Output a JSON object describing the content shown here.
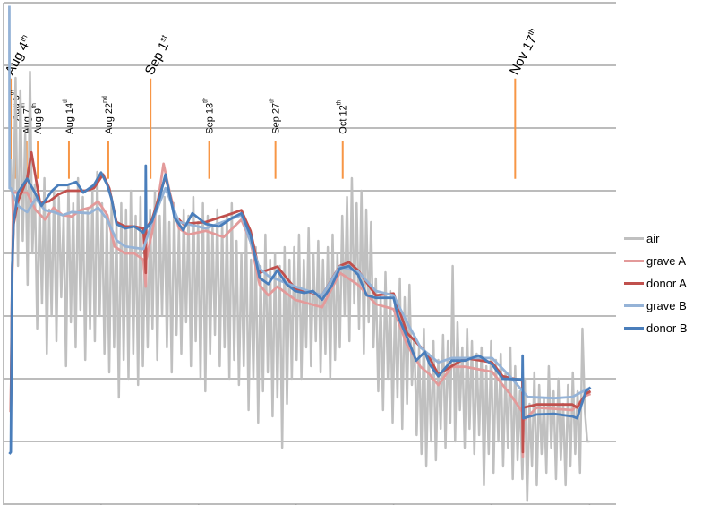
{
  "chart_data": {
    "type": "line",
    "title": "",
    "xlabel": "",
    "ylabel": "",
    "x_unit": "days since Aug 4th",
    "xlim": [
      -1.5,
      126
    ],
    "ylim": [
      0,
      8
    ],
    "y_gridlines": [
      1,
      2,
      3,
      4,
      5,
      6,
      7,
      8
    ],
    "x_ticks": [
      -1.5,
      18.8,
      39.1,
      59.4,
      79.7,
      100,
      120.5
    ],
    "grid": true,
    "legend_position": "right",
    "colors": {
      "air": "#c0c0c0",
      "grave_a": "#e39a9a",
      "donor_a": "#c0504d",
      "grave_b": "#95b3d7",
      "donor_b": "#4a7ebb",
      "annotation": "#f79646",
      "grid": "#a6a6a6"
    },
    "annotations": [
      {
        "date": "Aug 4",
        "sup": "th",
        "day": 0,
        "style": "major",
        "range": [
          5.19,
          6.79
        ]
      },
      {
        "date": "Aug 5",
        "sup": "th",
        "day": 1,
        "style": "minor",
        "range": [
          5.19,
          6.0
        ]
      },
      {
        "date": "Aug 7",
        "sup": "th",
        "day": 3.3,
        "style": "minor",
        "range": [
          5.19,
          5.79
        ]
      },
      {
        "date": "Aug 9",
        "sup": "th",
        "day": 5.6,
        "style": "minor",
        "range": [
          5.19,
          5.79
        ]
      },
      {
        "date": "Aug 14",
        "sup": "th",
        "day": 12.1,
        "style": "minor",
        "range": [
          5.19,
          5.79
        ]
      },
      {
        "date": "Aug 22",
        "sup": "nd",
        "day": 20.3,
        "style": "minor",
        "range": [
          5.19,
          5.79
        ]
      },
      {
        "date": "Sep 1",
        "sup": "st",
        "day": 29.1,
        "style": "major",
        "range": [
          5.19,
          6.79
        ]
      },
      {
        "date": "Sep 13",
        "sup": "th",
        "day": 41.3,
        "style": "minor",
        "range": [
          5.19,
          5.79
        ]
      },
      {
        "date": "Sep 27",
        "sup": "th",
        "day": 55.1,
        "style": "minor",
        "range": [
          5.19,
          5.79
        ]
      },
      {
        "date": "Oct 12",
        "sup": "th",
        "day": 69.1,
        "style": "minor",
        "range": [
          5.19,
          5.79
        ]
      },
      {
        "date": "Nov 17",
        "sup": "th",
        "day": 105,
        "style": "major",
        "range": [
          5.19,
          6.79
        ]
      }
    ],
    "air": {
      "name": "air",
      "daily_high": [
        5.5,
        6.8,
        6.6,
        5.9,
        6.9,
        5.1,
        4.8,
        5.2,
        4.7,
        5.0,
        4.9,
        4.6,
        5.1,
        4.8,
        5.2,
        4.9,
        4.7,
        5.0,
        5.3,
        4.8,
        4.6,
        4.9,
        4.5,
        4.8,
        4.7,
        5.0,
        4.6,
        4.9,
        4.4,
        4.7,
        5.0,
        4.6,
        4.9,
        4.5,
        4.8,
        4.4,
        4.7,
        4.6,
        4.9,
        4.5,
        4.8,
        4.6,
        4.4,
        4.7,
        4.5,
        4.6,
        4.8,
        4.2,
        4.0,
        4.4,
        3.9,
        4.1,
        3.8,
        4.3,
        3.9,
        4.0,
        3.8,
        4.1,
        3.9,
        4.1,
        4.3,
        3.9,
        4.4,
        4.0,
        4.2,
        3.9,
        4.1,
        4.3,
        4.0,
        4.6,
        4.9,
        5.2,
        4.8,
        5.0,
        4.7,
        4.5,
        3.6,
        3.3,
        3.7,
        3.4,
        3.2,
        3.6,
        3.3,
        3.5,
        2.7,
        2.5,
        2.8,
        2.4,
        2.6,
        2.3,
        2.7,
        2.6,
        3.8,
        2.9,
        2.5,
        2.8,
        2.6,
        2.4,
        2.5,
        2.2,
        2.6,
        2.3,
        2.4,
        2.1,
        2.5,
        2.2,
        1.8,
        2.0,
        1.6,
        2.1,
        1.9,
        1.7,
        2.2,
        1.8,
        2.0,
        1.6,
        1.9,
        2.1,
        1.8,
        2.8,
        1.0
      ],
      "daily_low": [
        4.5,
        3.8,
        4.2,
        3.5,
        4.0,
        2.8,
        3.2,
        2.4,
        3.0,
        2.6,
        3.3,
        2.2,
        2.9,
        2.5,
        3.1,
        2.3,
        2.8,
        2.6,
        3.0,
        2.4,
        2.1,
        2.5,
        1.7,
        2.3,
        2.0,
        2.4,
        1.9,
        2.2,
        2.5,
        2.8,
        2.3,
        3.0,
        2.5,
        2.1,
        2.7,
        2.4,
        2.9,
        2.2,
        2.6,
        2.0,
        1.8,
        2.4,
        2.7,
        2.2,
        2.5,
        2.0,
        2.3,
        1.9,
        2.2,
        1.5,
        2.0,
        1.3,
        1.8,
        2.1,
        1.4,
        1.7,
        0.9,
        1.6,
        2.0,
        2.3,
        2.0,
        2.5,
        2.2,
        2.6,
        2.1,
        2.4,
        2.0,
        2.3,
        2.5,
        3.0,
        2.6,
        3.2,
        2.8,
        2.4,
        2.9,
        2.5,
        1.8,
        1.5,
        2.0,
        1.3,
        1.7,
        1.2,
        1.6,
        1.9,
        1.1,
        0.8,
        0.6,
        1.0,
        0.7,
        1.2,
        0.9,
        1.3,
        1.0,
        1.5,
        0.9,
        1.2,
        0.8,
        1.1,
        0.3,
        0.8,
        0.5,
        1.0,
        0.6,
        0.9,
        0.4,
        0.7,
        0.4,
        0.05,
        0.6,
        0.3,
        0.8,
        0.5,
        0.9,
        0.4,
        0.7,
        0.3,
        0.6,
        0.8,
        0.5,
        1.5,
        1.0
      ]
    },
    "series": [
      {
        "key": "grave_a",
        "name": "grave A",
        "x": [
          0,
          0.5,
          1.5,
          3.4,
          5.2,
          7.1,
          8.9,
          10.8,
          12.7,
          14.5,
          16.4,
          18.2,
          20.1,
          21.6,
          23.8,
          25.7,
          27.6,
          28.1,
          28.2,
          29.4,
          30.9,
          31.8,
          33.1,
          35,
          36.9,
          40.6,
          44.3,
          48,
          49.9,
          51.8,
          53.6,
          55.5,
          59.2,
          64.8,
          68.5,
          72.3,
          76,
          79.7,
          82.5,
          85.3,
          87.2,
          89,
          91.8,
          94.6,
          100.2,
          103.9,
          106.5,
          106.6,
          106.7,
          109.5,
          116.9,
          119.7,
          120.7
        ],
        "y": [
          1.47,
          4.97,
          4.97,
          4.97,
          4.69,
          4.54,
          4.73,
          4.61,
          4.59,
          4.69,
          4.73,
          4.83,
          4.61,
          4.11,
          4.0,
          4.0,
          3.9,
          3.47,
          3.9,
          4.33,
          4.97,
          5.43,
          4.97,
          4.4,
          4.3,
          4.36,
          4.26,
          4.54,
          4.19,
          3.5,
          3.33,
          3.47,
          3.26,
          3.14,
          3.69,
          3.5,
          3.19,
          3.11,
          2.54,
          2.19,
          2.07,
          1.9,
          2.19,
          2.19,
          2.11,
          1.76,
          1.47,
          0.76,
          1.33,
          1.54,
          1.5,
          1.73,
          1.76
        ]
      },
      {
        "key": "donor_a",
        "name": "donor A",
        "x": [
          0,
          0.3,
          0.6,
          1.5,
          3.4,
          4.3,
          6.1,
          8,
          9.9,
          11.7,
          15.5,
          17.3,
          19.2,
          20.5,
          22,
          23.8,
          25.7,
          27.6,
          28.1,
          28.2,
          29.4,
          32.2,
          34.1,
          35.9,
          40.6,
          46.2,
          48,
          49.9,
          51.8,
          55.5,
          59.2,
          64.8,
          68.5,
          70.4,
          72.3,
          76,
          79.7,
          82.5,
          86.2,
          87.2,
          89,
          94.6,
          100.2,
          102.4,
          106.5,
          106.6,
          106.7,
          109.5,
          116.9,
          117.9,
          119.7,
          120.7
        ],
        "y": [
          1.47,
          3.76,
          4.47,
          4.83,
          5.19,
          5.61,
          4.8,
          4.83,
          4.94,
          5.0,
          5.0,
          5.04,
          5.26,
          5.04,
          4.5,
          4.43,
          4.43,
          4.4,
          3.69,
          4.4,
          4.54,
          5.23,
          4.61,
          4.47,
          4.5,
          4.64,
          4.69,
          4.36,
          3.69,
          3.79,
          3.44,
          3.33,
          3.8,
          3.86,
          3.73,
          3.33,
          3.36,
          2.73,
          2.44,
          2.33,
          2.07,
          2.33,
          2.26,
          2.04,
          1.97,
          0.83,
          1.54,
          1.59,
          1.59,
          1.54,
          1.76,
          1.8
        ]
      },
      {
        "key": "grave_b",
        "name": "grave B",
        "x": [
          -0.3,
          -0.25,
          0,
          1.5,
          3.4,
          5.2,
          7.1,
          8.9,
          10.8,
          12.7,
          16.4,
          18.2,
          20.1,
          22,
          23.8,
          27.6,
          29.4,
          32.2,
          35,
          40.6,
          48,
          51.8,
          53.6,
          59.2,
          64.8,
          68.5,
          72.3,
          76,
          79.7,
          82.5,
          85.3,
          89,
          91.8,
          100.2,
          103.9,
          107.6,
          113.2,
          116.9,
          120.7
        ],
        "y": [
          7.95,
          5.04,
          5.04,
          4.76,
          4.66,
          4.87,
          4.69,
          4.66,
          4.61,
          4.66,
          4.64,
          4.73,
          4.54,
          4.21,
          4.11,
          4.07,
          4.5,
          5.04,
          4.5,
          4.4,
          4.61,
          3.76,
          3.64,
          3.47,
          3.33,
          3.79,
          3.71,
          3.4,
          3.33,
          2.9,
          2.5,
          2.26,
          2.33,
          2.33,
          2.04,
          1.71,
          1.69,
          1.71,
          1.86
        ]
      },
      {
        "key": "donor_b",
        "name": "donor B",
        "x": [
          -0.3,
          0,
          0.3,
          0.6,
          1.5,
          3.4,
          4.8,
          6.4,
          8.6,
          9.9,
          11.7,
          13.6,
          15.1,
          17.3,
          18.8,
          20.1,
          21,
          22,
          23.8,
          25.7,
          27.6,
          28.05,
          28.1,
          28.2,
          29.4,
          30.9,
          32.2,
          34.1,
          35.9,
          37.8,
          40.6,
          43.4,
          46.2,
          48,
          49.9,
          51.8,
          53.6,
          55.5,
          57.4,
          59.2,
          61.1,
          62.9,
          64.8,
          66.7,
          68.5,
          70.4,
          72.3,
          74.1,
          76,
          79.7,
          80.6,
          82.5,
          84.4,
          86.2,
          87.2,
          89,
          91.8,
          94.6,
          97.4,
          100.2,
          102.4,
          106.5,
          106.55,
          106.7,
          109.5,
          113.2,
          116.9,
          117.9,
          119.7,
          120.7
        ],
        "y": [
          0.8,
          0.83,
          3.8,
          4.51,
          4.97,
          5.19,
          5.0,
          4.76,
          5.0,
          5.09,
          5.09,
          5.14,
          4.97,
          5.09,
          5.29,
          5.09,
          4.86,
          4.47,
          4.4,
          4.43,
          4.33,
          4.4,
          5.4,
          4.4,
          4.51,
          4.86,
          5.26,
          4.57,
          4.37,
          4.64,
          4.47,
          4.43,
          4.57,
          4.64,
          4.29,
          3.61,
          3.51,
          3.73,
          3.51,
          3.4,
          3.37,
          3.4,
          3.26,
          3.47,
          3.76,
          3.8,
          3.66,
          3.33,
          3.29,
          3.29,
          3.0,
          2.66,
          2.29,
          2.43,
          2.23,
          2.04,
          2.29,
          2.29,
          2.37,
          2.23,
          2.0,
          1.99,
          2.37,
          1.37,
          1.43,
          1.44,
          1.4,
          1.37,
          1.8,
          1.86
        ]
      }
    ],
    "legend": [
      {
        "key": "air",
        "label": "air"
      },
      {
        "key": "grave_a",
        "label": "grave A"
      },
      {
        "key": "donor_a",
        "label": "donor A"
      },
      {
        "key": "grave_b",
        "label": "grave B"
      },
      {
        "key": "donor_b",
        "label": "donor B"
      }
    ]
  }
}
